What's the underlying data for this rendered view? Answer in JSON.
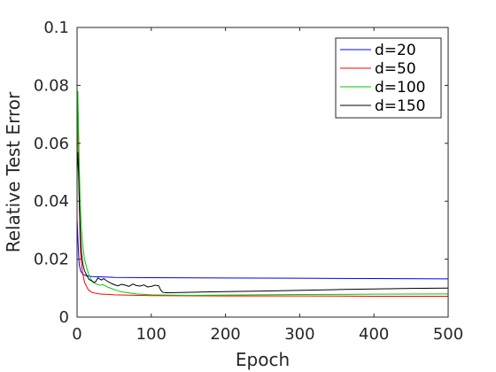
{
  "chart_data": {
    "type": "line",
    "xlabel": "Epoch",
    "ylabel": "Relative Test Error",
    "xlim": [
      0,
      500
    ],
    "ylim": [
      0,
      0.1
    ],
    "xticks": [
      0,
      100,
      200,
      300,
      400,
      500
    ],
    "xtick_labels": [
      "0",
      "100",
      "200",
      "300",
      "400",
      "500"
    ],
    "yticks": [
      0,
      0.02,
      0.04,
      0.06,
      0.08,
      0.1
    ],
    "ytick_labels": [
      "0",
      "0.02",
      "0.04",
      "0.06",
      "0.08",
      "0.1"
    ],
    "grid": false,
    "legend_position": "top-right",
    "series": [
      {
        "name": "d=20",
        "color": "#0000ff",
        "x": [
          0,
          1,
          2,
          3,
          5,
          8,
          12,
          20,
          30,
          50,
          100,
          200,
          300,
          400,
          500
        ],
        "y": [
          0.034,
          0.028,
          0.022,
          0.018,
          0.0158,
          0.0148,
          0.0143,
          0.014,
          0.0139,
          0.0137,
          0.0136,
          0.0135,
          0.0134,
          0.0133,
          0.0132
        ]
      },
      {
        "name": "d=50",
        "color": "#ff0000",
        "x": [
          0,
          0.5,
          1,
          1.5,
          2,
          3,
          4,
          5,
          7,
          10,
          15,
          20,
          30,
          50,
          100,
          200,
          300,
          400,
          500
        ],
        "y": [
          0.052,
          0.07,
          0.076,
          0.068,
          0.058,
          0.04,
          0.028,
          0.021,
          0.016,
          0.012,
          0.0095,
          0.0085,
          0.008,
          0.0077,
          0.0074,
          0.0073,
          0.0073,
          0.0072,
          0.0072
        ]
      },
      {
        "name": "d=100",
        "color": "#00cc00",
        "x": [
          0,
          1,
          2,
          3,
          4,
          5,
          6,
          8,
          10,
          13,
          16,
          20,
          25,
          30,
          35,
          40,
          50,
          60,
          80,
          100,
          150,
          200,
          300,
          400,
          500
        ],
        "y": [
          0.044,
          0.078,
          0.065,
          0.052,
          0.042,
          0.035,
          0.03,
          0.024,
          0.02,
          0.017,
          0.0145,
          0.0125,
          0.0115,
          0.011,
          0.0112,
          0.0105,
          0.0095,
          0.0087,
          0.008,
          0.0077,
          0.0075,
          0.0076,
          0.0078,
          0.0079,
          0.008
        ]
      },
      {
        "name": "d=150",
        "color": "#000000",
        "x": [
          0,
          1,
          2,
          3,
          4,
          5,
          6,
          8,
          10,
          13,
          16,
          20,
          22,
          25,
          28,
          30,
          33,
          36,
          40,
          45,
          50,
          55,
          60,
          65,
          70,
          75,
          80,
          85,
          90,
          95,
          100,
          105,
          110,
          113,
          116,
          120,
          140,
          180,
          250,
          350,
          450,
          500
        ],
        "y": [
          0.05,
          0.057,
          0.05,
          0.04,
          0.032,
          0.026,
          0.022,
          0.018,
          0.016,
          0.0145,
          0.013,
          0.0125,
          0.012,
          0.0122,
          0.0135,
          0.0132,
          0.0128,
          0.0133,
          0.0125,
          0.0118,
          0.0112,
          0.0108,
          0.0113,
          0.011,
          0.0106,
          0.0114,
          0.0109,
          0.0107,
          0.0111,
          0.0104,
          0.0106,
          0.011,
          0.0108,
          0.0092,
          0.0085,
          0.0084,
          0.0085,
          0.0087,
          0.009,
          0.0095,
          0.0099,
          0.01
        ]
      }
    ]
  }
}
